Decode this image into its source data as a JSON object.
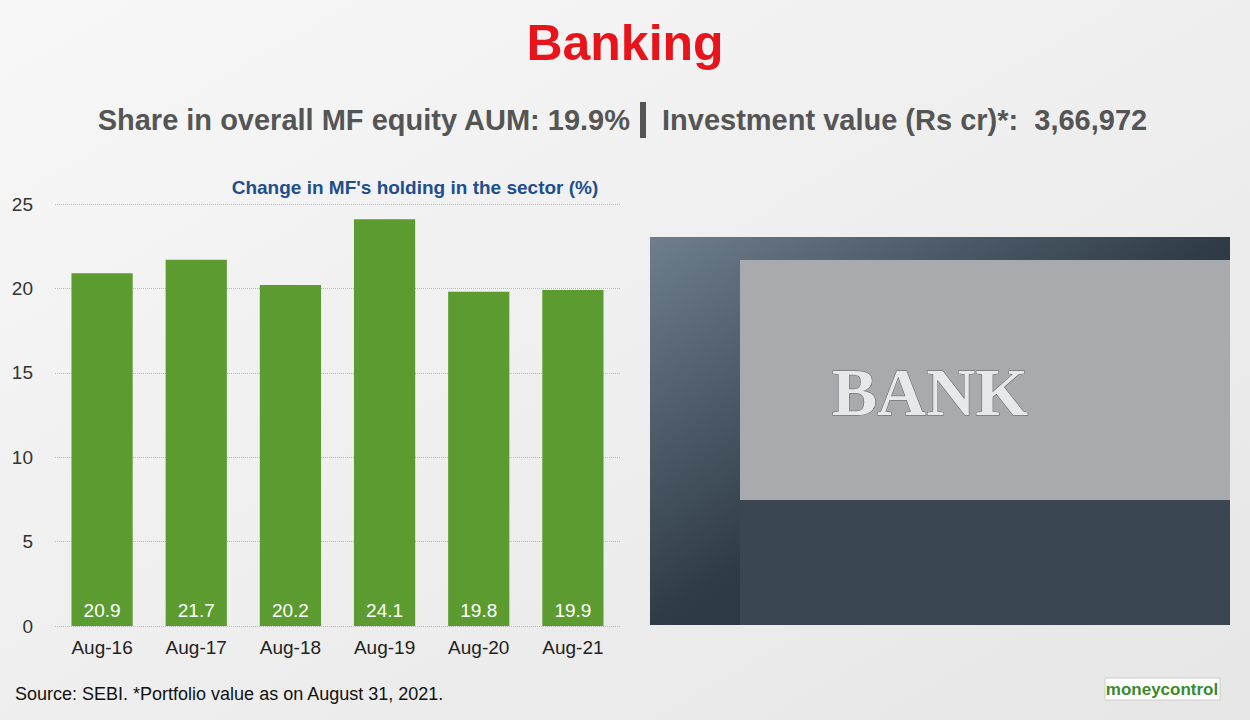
{
  "chart_data": {
    "type": "bar",
    "title": "Banking",
    "subtitle": [
      "Share in overall MF equity AUM: 19.9%",
      "Investment value (Rs cr)*:  3,66,972"
    ],
    "ylabel": "Change in MF's holding in the sector (%)",
    "categories": [
      "Aug-16",
      "Aug-17",
      "Aug-18",
      "Aug-19",
      "Aug-20",
      "Aug-21"
    ],
    "values": [
      20.9,
      21.7,
      20.2,
      24.1,
      19.8,
      19.9
    ],
    "color": "#5b9b2f",
    "ylim": [
      0,
      25
    ],
    "yticks": [
      0,
      5,
      10,
      15,
      20,
      25
    ],
    "grid": true,
    "data_labels": true,
    "annotations": [
      "Source: SEBI. *Portfolio value as on August 31, 2021.",
      "moneycontrol",
      "BANK"
    ]
  }
}
